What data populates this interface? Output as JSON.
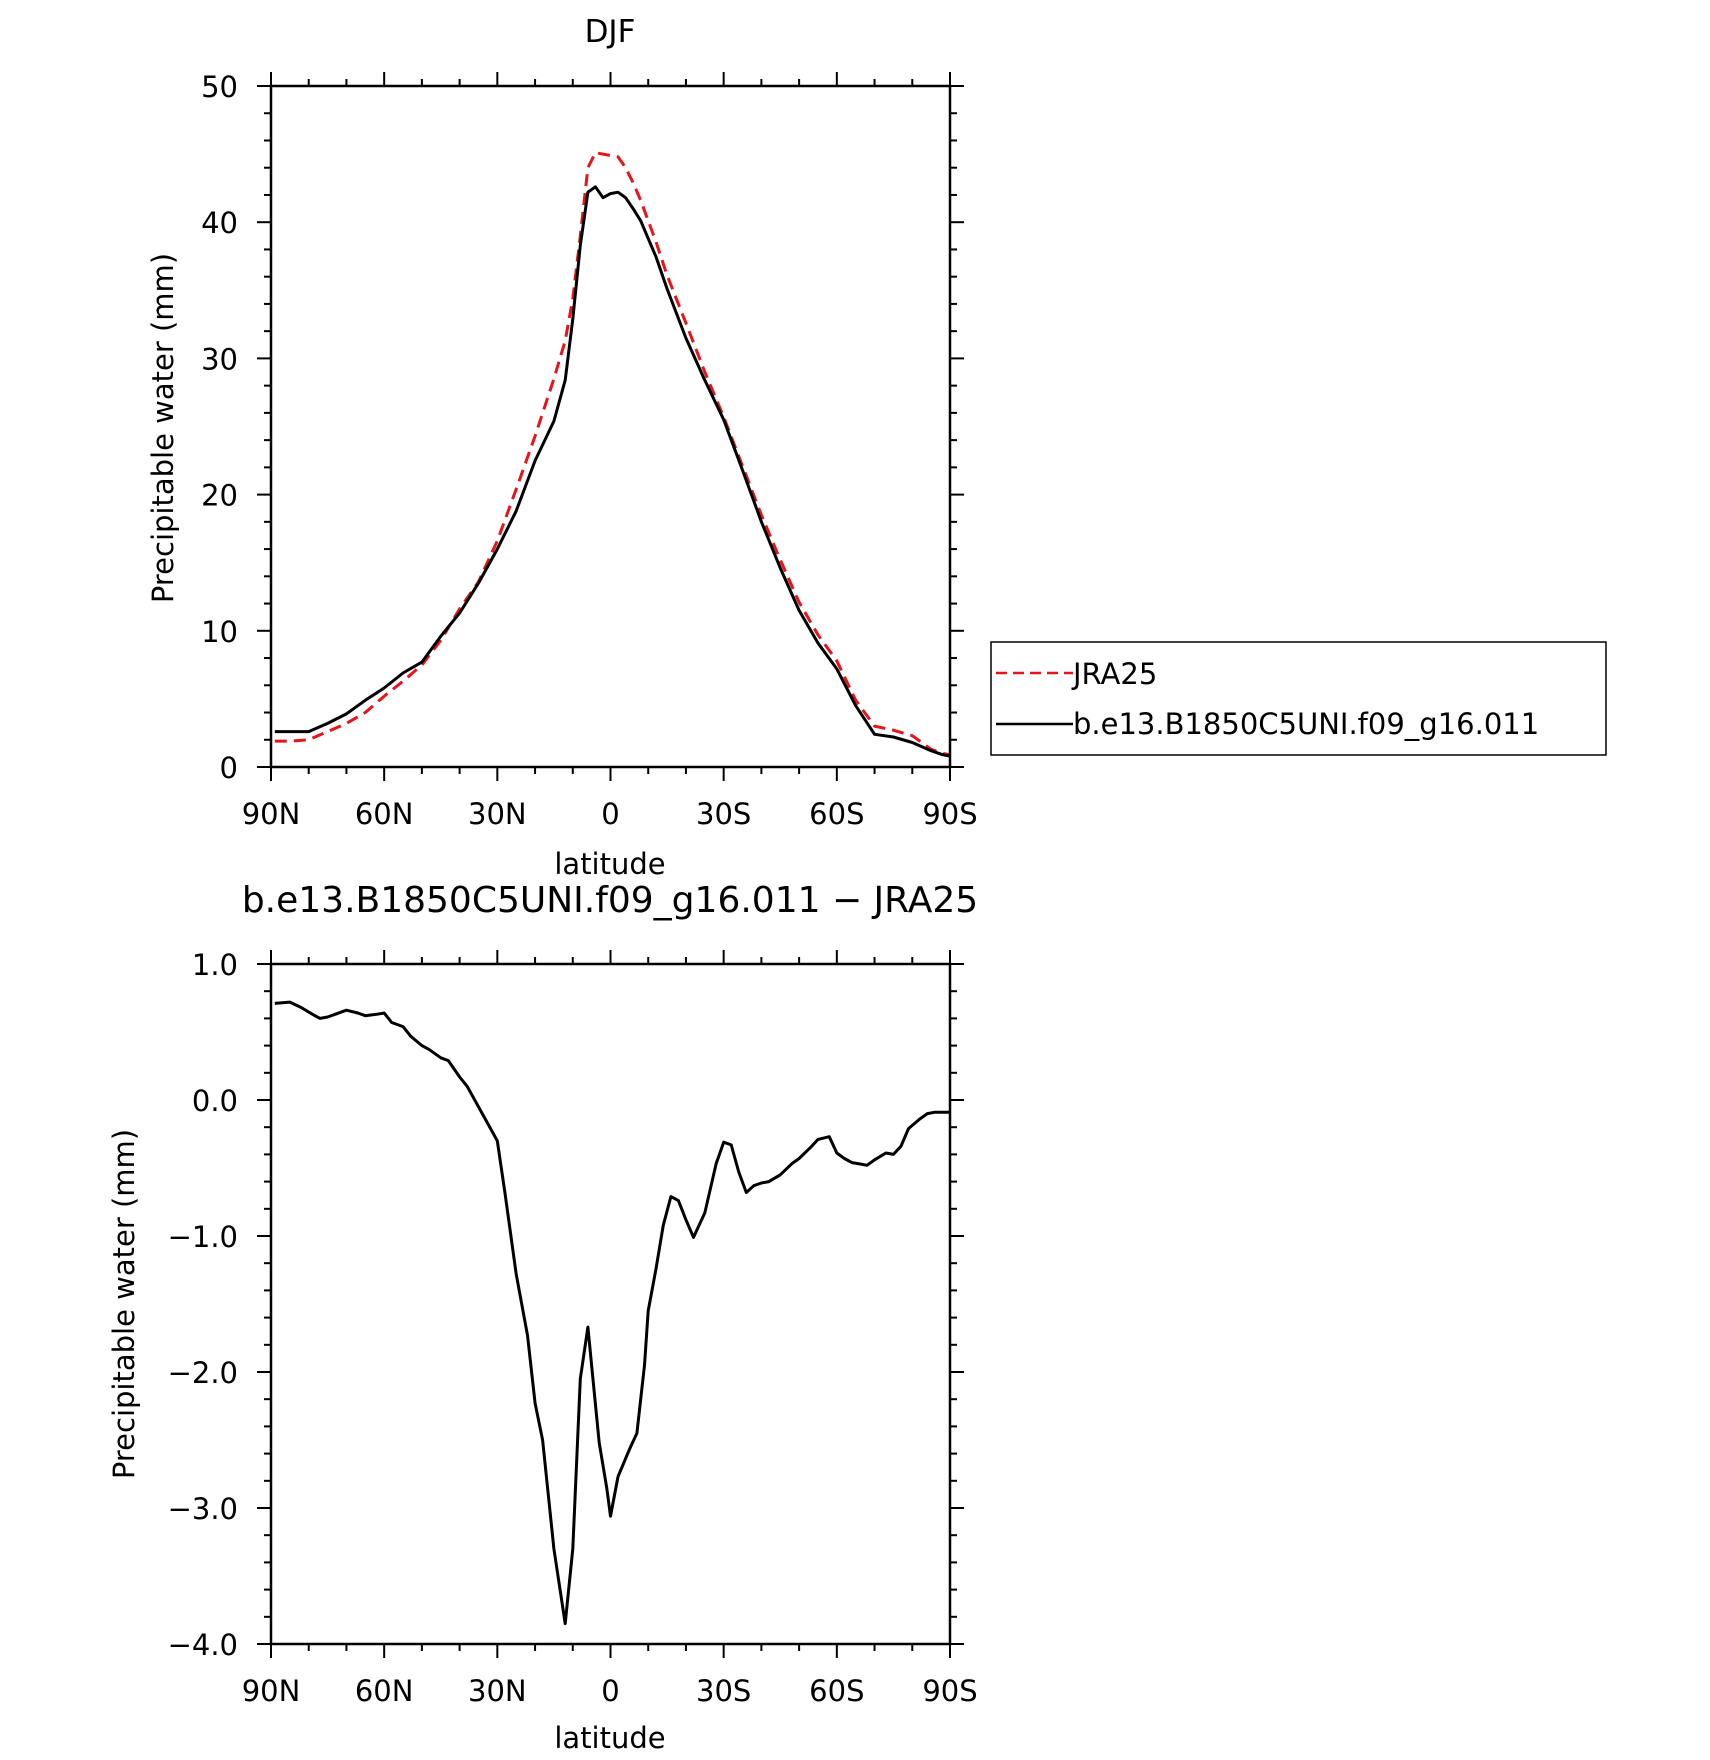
{
  "chart_data": [
    {
      "type": "line",
      "title": "DJF",
      "xlabel": "latitude",
      "ylabel": "Precipitable water (mm)",
      "xlim": [
        90,
        -90
      ],
      "ylim": [
        0,
        50
      ],
      "xticks": [
        90,
        60,
        30,
        0,
        -30,
        -60,
        -90
      ],
      "xtick_labels": [
        "90N",
        "60N",
        "30N",
        "0",
        "30S",
        "60S",
        "90S"
      ],
      "yticks": [
        0,
        10,
        20,
        30,
        40,
        50
      ],
      "ytick_labels": [
        "0",
        "10",
        "20",
        "30",
        "40",
        "50"
      ],
      "legend_position": "right",
      "legend": [
        "JRA25",
        "b.e13.B1850C5UNI.f09_g16.011"
      ],
      "series": [
        {
          "name": "JRA25",
          "color": "#e8141a",
          "dash": "dashed",
          "x": [
            89,
            85,
            80,
            75,
            70,
            65,
            60,
            55,
            50,
            45,
            40,
            35,
            30,
            25,
            20,
            15,
            12,
            10,
            8,
            6,
            4,
            2,
            0,
            -2,
            -4,
            -6,
            -8,
            -10,
            -12,
            -15,
            -20,
            -25,
            -30,
            -35,
            -40,
            -45,
            -50,
            -55,
            -60,
            -65,
            -70,
            -75,
            -80,
            -85,
            -88,
            -90
          ],
          "y": [
            1.9,
            1.9,
            2.0,
            2.6,
            3.2,
            4.0,
            5.2,
            6.3,
            7.5,
            9.3,
            11.6,
            13.6,
            16.6,
            20.4,
            24.3,
            28.5,
            31.3,
            34.4,
            39.0,
            44.0,
            45.1,
            45.0,
            44.9,
            44.8,
            44.0,
            42.9,
            41.6,
            40.1,
            38.6,
            36.1,
            32.6,
            29.0,
            25.7,
            22.1,
            18.5,
            15.2,
            12.1,
            9.7,
            7.8,
            4.9,
            3.0,
            2.7,
            2.3,
            1.3,
            1.0,
            0.9
          ]
        },
        {
          "name": "b.e13.B1850C5UNI.f09_g16.011",
          "color": "#000000",
          "dash": "solid",
          "x": [
            89,
            85,
            80,
            75,
            70,
            65,
            60,
            55,
            50,
            45,
            40,
            35,
            30,
            25,
            20,
            15,
            12,
            10,
            8,
            6,
            4,
            2,
            0,
            -2,
            -4,
            -6,
            -8,
            -10,
            -12,
            -15,
            -20,
            -25,
            -30,
            -35,
            -40,
            -45,
            -50,
            -55,
            -60,
            -65,
            -70,
            -75,
            -80,
            -85,
            -88,
            -90
          ],
          "y": [
            2.6,
            2.6,
            2.6,
            3.2,
            3.9,
            4.9,
            5.8,
            6.9,
            7.7,
            9.6,
            11.3,
            13.5,
            16.0,
            18.8,
            22.5,
            25.4,
            28.4,
            32.9,
            38.3,
            42.2,
            42.6,
            41.8,
            42.1,
            42.2,
            41.8,
            41.0,
            40.1,
            38.8,
            37.5,
            35.1,
            31.5,
            28.4,
            25.5,
            21.8,
            18.0,
            14.6,
            11.5,
            9.1,
            7.2,
            4.5,
            2.4,
            2.2,
            1.8,
            1.2,
            0.9,
            0.8
          ]
        }
      ]
    },
    {
      "type": "line",
      "title": "b.e13.B1850C5UNI.f09_g16.011 − JRA25",
      "xlabel": "latitude",
      "ylabel": "Precipitable water (mm)",
      "xlim": [
        90,
        -90
      ],
      "ylim": [
        -4.0,
        1.0
      ],
      "xticks": [
        90,
        60,
        30,
        0,
        -30,
        -60,
        -90
      ],
      "xtick_labels": [
        "90N",
        "60N",
        "30N",
        "0",
        "30S",
        "60S",
        "90S"
      ],
      "yticks": [
        1.0,
        0.0,
        -1.0,
        -2.0,
        -3.0,
        -4.0
      ],
      "ytick_labels": [
        "1.0",
        "0.0",
        "−1.0",
        "−2.0",
        "−3.0",
        "−4.0"
      ],
      "series": [
        {
          "color": "#000000",
          "dash": "solid",
          "x": [
            89,
            85,
            82,
            79,
            77,
            75,
            73,
            70,
            67,
            65,
            62,
            60,
            58,
            55,
            53,
            50,
            48,
            45,
            43,
            40,
            38,
            35,
            33,
            30,
            28,
            25,
            22,
            20,
            18,
            15,
            12,
            10,
            8,
            6,
            5,
            3,
            1,
            0,
            -2,
            -5,
            -7,
            -9,
            -10,
            -12,
            -14,
            -16,
            -18,
            -20,
            -22,
            -25,
            -28,
            -30,
            -32,
            -34,
            -36,
            -38,
            -40,
            -42,
            -45,
            -48,
            -50,
            -53,
            -55,
            -58,
            -60,
            -62,
            -64,
            -66,
            -68,
            -70,
            -73,
            -75,
            -77,
            -79,
            -82,
            -84,
            -86,
            -88,
            -90
          ],
          "y": [
            0.71,
            0.72,
            0.68,
            0.63,
            0.6,
            0.61,
            0.63,
            0.66,
            0.64,
            0.62,
            0.63,
            0.64,
            0.57,
            0.54,
            0.47,
            0.4,
            0.37,
            0.31,
            0.29,
            0.17,
            0.1,
            -0.05,
            -0.15,
            -0.3,
            -0.68,
            -1.28,
            -1.73,
            -2.23,
            -2.5,
            -3.3,
            -3.85,
            -3.3,
            -2.05,
            -1.67,
            -1.95,
            -2.52,
            -2.85,
            -3.06,
            -2.77,
            -2.57,
            -2.45,
            -1.95,
            -1.55,
            -1.25,
            -0.92,
            -0.71,
            -0.74,
            -0.88,
            -1.01,
            -0.83,
            -0.47,
            -0.31,
            -0.33,
            -0.53,
            -0.68,
            -0.63,
            -0.61,
            -0.6,
            -0.55,
            -0.47,
            -0.43,
            -0.35,
            -0.29,
            -0.27,
            -0.39,
            -0.43,
            -0.46,
            -0.47,
            -0.48,
            -0.44,
            -0.39,
            -0.4,
            -0.34,
            -0.21,
            -0.14,
            -0.1,
            -0.09,
            -0.09,
            -0.09
          ]
        }
      ]
    }
  ]
}
